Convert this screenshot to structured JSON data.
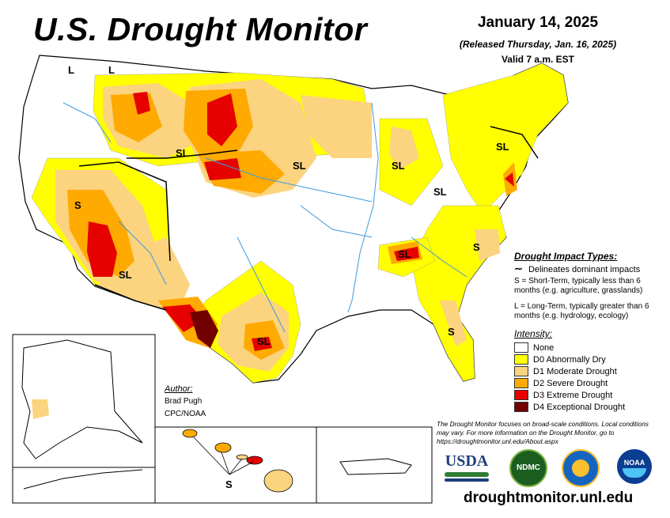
{
  "header": {
    "title": "U.S. Drought Monitor",
    "date": "January 14, 2025",
    "released": "(Released Thursday, Jan. 16, 2025)",
    "valid": "Valid 7 a.m. EST"
  },
  "impact_legend": {
    "title": "Drought Impact Types:",
    "delineates": "Delineates dominant impacts",
    "short_term": "S = Short-Term, typically less than 6 months (e.g. agriculture, grasslands)",
    "long_term": "L = Long-Term, typically greater than 6 months (e.g. hydrology, ecology)"
  },
  "intensity_legend": {
    "title": "Intensity:",
    "items": [
      {
        "label": "None",
        "color": "#ffffff"
      },
      {
        "label": "D0 Abnormally Dry",
        "color": "#ffff00"
      },
      {
        "label": "D1 Moderate Drought",
        "color": "#fcd37f"
      },
      {
        "label": "D2 Severe Drought",
        "color": "#ffaa00"
      },
      {
        "label": "D3 Extreme Drought",
        "color": "#e60000"
      },
      {
        "label": "D4 Exceptional Drought",
        "color": "#730000"
      }
    ]
  },
  "author": {
    "title": "Author:",
    "name": "Brad Pugh",
    "org": "CPC/NOAA"
  },
  "disclaimer": "The Drought Monitor focuses on broad-scale conditions. Local conditions may vary. For more information on the Drought Monitor, go to https://droughtmonitor.unl.edu/About.aspx",
  "website": "droughtmonitor.unl.edu",
  "map_labels": {
    "l": "L",
    "sl": "SL",
    "s": "S"
  },
  "logos": {
    "usda": "USDA",
    "ndmc": "NDMC",
    "noaa": "NOAA"
  },
  "colors": {
    "none": "#ffffff",
    "d0": "#ffff00",
    "d1": "#fcd37f",
    "d2": "#ffaa00",
    "d3": "#e60000",
    "d4": "#730000",
    "water": "#3b9be0"
  }
}
